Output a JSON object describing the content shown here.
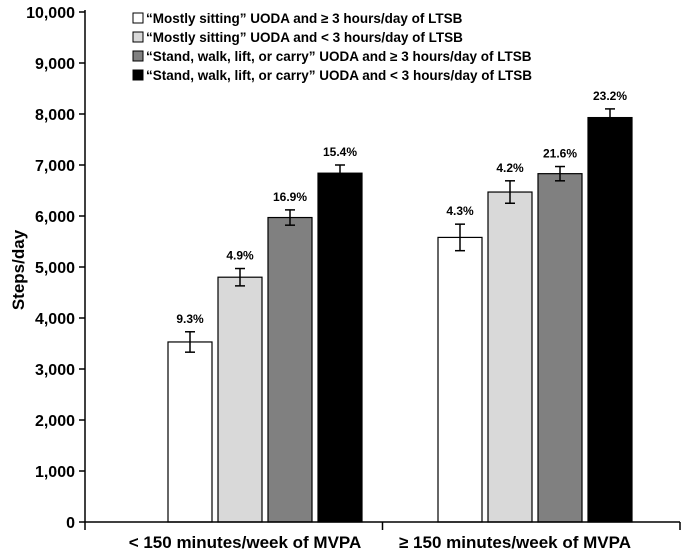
{
  "chart_data": {
    "type": "bar",
    "title": "",
    "xlabel": "",
    "ylabel": "Steps/day",
    "ylim": [
      0,
      10000
    ],
    "yticks": [
      0,
      1000,
      2000,
      3000,
      4000,
      5000,
      6000,
      7000,
      8000,
      9000,
      10000
    ],
    "ytick_labels": [
      "0",
      "1,000",
      "2,000",
      "3,000",
      "4,000",
      "5,000",
      "6,000",
      "7,000",
      "8,000",
      "9,000",
      "10,000"
    ],
    "categories": [
      "< 150 minutes/week of MVPA",
      "≥ 150 minutes/week of MVPA"
    ],
    "legend_position": "top-right",
    "series": [
      {
        "name": "“Mostly sitting” UODA and ≥ 3 hours/day of LTSB",
        "color": "#ffffff",
        "values": [
          3530,
          5580
        ],
        "errors": [
          200,
          260
        ],
        "labels": [
          "9.3%",
          "4.3%"
        ]
      },
      {
        "name": "“Mostly sitting” UODA and < 3 hours/day of LTSB",
        "color": "#d9d9d9",
        "values": [
          4800,
          6470
        ],
        "errors": [
          170,
          220
        ],
        "labels": [
          "4.9%",
          "4.2%"
        ]
      },
      {
        "name": "“Stand, walk, lift, or carry” UODA and ≥ 3 hours/day of LTSB",
        "color": "#808080",
        "values": [
          5970,
          6830
        ],
        "errors": [
          150,
          140
        ],
        "labels": [
          "16.9%",
          "21.6%"
        ]
      },
      {
        "name": "“Stand, walk, lift, or carry” UODA and < 3 hours/day of LTSB",
        "color": "#000000",
        "values": [
          6840,
          7930
        ],
        "errors": [
          160,
          170
        ],
        "labels": [
          "15.4%",
          "23.2%"
        ]
      }
    ]
  }
}
